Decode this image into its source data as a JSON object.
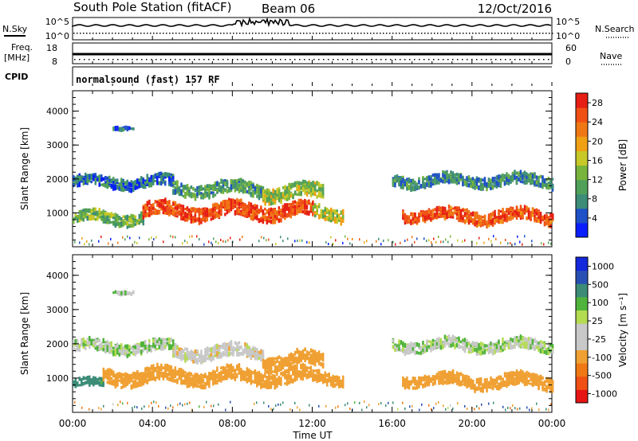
{
  "header": {
    "station": "South Pole Station (fitACF)",
    "beam": "Beam 06",
    "date": "12/Oct/2016"
  },
  "panels": {
    "nsky_label": "N.Sky",
    "nsearch_label": "N.Search",
    "noise_ticks_top": "10^5",
    "noise_ticks_bottom": "10^0",
    "freq_label": "Freq.",
    "freq_unit": "[MHz]",
    "freq_ticks": [
      "18",
      "8"
    ],
    "nave_label": "Nave",
    "nave_ticks": [
      "60",
      "0"
    ],
    "cpid_label": "CPID",
    "cpid_text": "normalsound (fast) 157 RF"
  },
  "colors": {
    "power_scale": [
      "#0a1eff",
      "#1e50c8",
      "#3c8c78",
      "#50a05a",
      "#78b43c",
      "#c8c828",
      "#f0a014",
      "#f07814",
      "#f05014",
      "#e61e14"
    ],
    "velocity_scale": [
      "#e61414",
      "#f05014",
      "#f07814",
      "#f0a032",
      "#c8c8c8",
      "#c8c8c8",
      "#b4dc50",
      "#50b43c",
      "#3c8c78",
      "#2850b4",
      "#1428dc"
    ]
  },
  "chart_data": [
    {
      "type": "heatmap",
      "title": "",
      "xlabel": "Time UT",
      "ylabel": "Slant Range [km]",
      "x_ticks": [
        "00:00",
        "04:00",
        "08:00",
        "12:00",
        "16:00",
        "20:00",
        "00:00"
      ],
      "y_ticks": [
        1000,
        2000,
        3000,
        4000
      ],
      "ylim": [
        0,
        4600
      ],
      "colorbar": {
        "label": "Power [dB]",
        "ticks": [
          4,
          8,
          12,
          16,
          20,
          24,
          28
        ],
        "range": [
          0,
          30
        ]
      },
      "regions": [
        {
          "t_start": 0.0,
          "t_end": 5.0,
          "r_center": 1900,
          "r_width": 300,
          "value": 6
        },
        {
          "t_start": 5.0,
          "t_end": 9.5,
          "r_center": 1700,
          "r_width": 350,
          "value": 10
        },
        {
          "t_start": 9.5,
          "t_end": 12.5,
          "r_center": 1600,
          "r_width": 400,
          "value": 14
        },
        {
          "t_start": 16.0,
          "t_end": 24.0,
          "r_center": 1950,
          "r_width": 300,
          "value": 8
        },
        {
          "t_start": 0.0,
          "t_end": 3.5,
          "r_center": 850,
          "r_width": 300,
          "value": 12
        },
        {
          "t_start": 3.5,
          "t_end": 12.0,
          "r_center": 1050,
          "r_width": 400,
          "value": 26
        },
        {
          "t_start": 12.0,
          "t_end": 13.5,
          "r_center": 1000,
          "r_width": 350,
          "value": 16
        },
        {
          "t_start": 16.5,
          "t_end": 18.5,
          "r_center": 950,
          "r_width": 300,
          "value": 26
        },
        {
          "t_start": 18.5,
          "t_end": 24.0,
          "r_center": 900,
          "r_width": 350,
          "value": 25
        },
        {
          "t_start": 2.0,
          "t_end": 3.0,
          "r_center": 3500,
          "r_width": 60,
          "value": 6
        }
      ]
    },
    {
      "type": "heatmap",
      "title": "",
      "xlabel": "Time UT",
      "ylabel": "Slant Range [km]",
      "x_ticks": [
        "00:00",
        "04:00",
        "08:00",
        "12:00",
        "16:00",
        "20:00",
        "00:00"
      ],
      "y_ticks": [
        1000,
        2000,
        3000,
        4000
      ],
      "ylim": [
        0,
        4600
      ],
      "colorbar": {
        "label": "Velocity [m s⁻¹]",
        "ticks": [
          1000,
          500,
          100,
          25,
          -25,
          -100,
          -500,
          -1000
        ],
        "range": [
          -1000,
          1000
        ]
      },
      "regions": [
        {
          "t_start": 0.0,
          "t_end": 5.0,
          "r_center": 1900,
          "r_width": 300,
          "value": 0
        },
        {
          "t_start": 5.0,
          "t_end": 9.5,
          "r_center": 1750,
          "r_width": 350,
          "value": -50
        },
        {
          "t_start": 9.5,
          "t_end": 12.5,
          "r_center": 1500,
          "r_width": 400,
          "value": -200
        },
        {
          "t_start": 16.0,
          "t_end": 24.0,
          "r_center": 1950,
          "r_width": 300,
          "value": 0
        },
        {
          "t_start": 0.0,
          "t_end": 1.5,
          "r_center": 850,
          "r_width": 200,
          "value": 150
        },
        {
          "t_start": 1.5,
          "t_end": 12.0,
          "r_center": 1050,
          "r_width": 400,
          "value": -200
        },
        {
          "t_start": 12.0,
          "t_end": 13.5,
          "r_center": 1000,
          "r_width": 300,
          "value": -200
        },
        {
          "t_start": 16.5,
          "t_end": 18.5,
          "r_center": 950,
          "r_width": 300,
          "value": -200
        },
        {
          "t_start": 18.5,
          "t_end": 24.0,
          "r_center": 900,
          "r_width": 350,
          "value": -200
        },
        {
          "t_start": 2.0,
          "t_end": 3.0,
          "r_center": 3500,
          "r_width": 60,
          "value": 0
        }
      ]
    }
  ]
}
